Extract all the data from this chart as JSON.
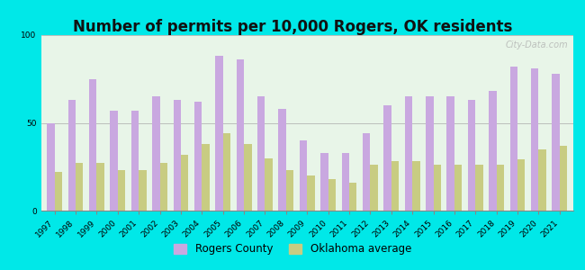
{
  "title": "Number of permits per 10,000 Rogers, OK residents",
  "years": [
    1997,
    1998,
    1999,
    2000,
    2001,
    2002,
    2003,
    2004,
    2005,
    2006,
    2007,
    2008,
    2009,
    2010,
    2011,
    2012,
    2013,
    2014,
    2015,
    2016,
    2017,
    2018,
    2019,
    2020,
    2021
  ],
  "rogers_county": [
    50,
    63,
    75,
    57,
    57,
    65,
    63,
    62,
    88,
    86,
    65,
    58,
    40,
    33,
    33,
    44,
    60,
    65,
    65,
    65,
    63,
    68,
    82,
    81,
    78
  ],
  "oklahoma_avg": [
    22,
    27,
    27,
    23,
    23,
    27,
    32,
    38,
    44,
    38,
    30,
    23,
    20,
    18,
    16,
    26,
    28,
    28,
    26,
    26,
    26,
    26,
    29,
    35,
    37
  ],
  "rogers_color": "#c9a8e0",
  "oklahoma_color": "#c8cc82",
  "background_outer": "#00e8e8",
  "background_inner": "#e8f5e8",
  "ylim": [
    0,
    100
  ],
  "yticks": [
    0,
    50,
    100
  ],
  "title_fontsize": 12,
  "tick_fontsize": 6.5,
  "legend_fontsize": 8.5,
  "watermark": "City-Data.com"
}
